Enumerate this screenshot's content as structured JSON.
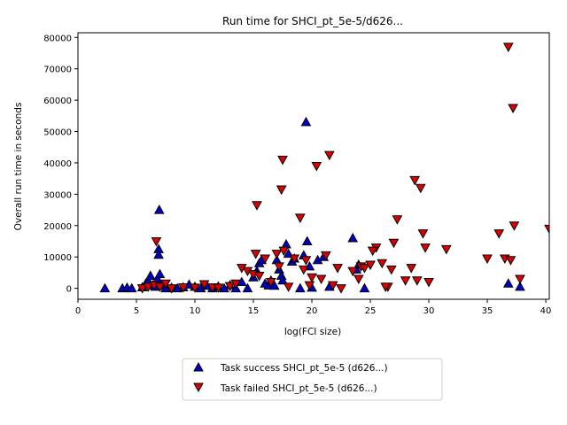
{
  "chart_data": {
    "type": "scatter",
    "title": "Run time for SHCI_pt_5e-5/d626...",
    "xlabel": "log(FCI size)",
    "ylabel": "Overall run time in seconds",
    "xlim": [
      0,
      40.3
    ],
    "ylim": [
      -3500,
      81500
    ],
    "xticks": [
      0,
      5,
      10,
      15,
      20,
      25,
      30,
      35,
      40
    ],
    "yticks": [
      0,
      10000,
      20000,
      30000,
      40000,
      50000,
      60000,
      70000,
      80000
    ],
    "grid": false,
    "legend_position": "below-plot",
    "series": [
      {
        "name": "Task success SHCI_pt_5e-5 (d626...)",
        "marker": "triangle-up",
        "color": "#0000cc",
        "points": [
          [
            2.3,
            0
          ],
          [
            3.8,
            0
          ],
          [
            4.2,
            200
          ],
          [
            4.6,
            0
          ],
          [
            5.5,
            300
          ],
          [
            5.8,
            1500
          ],
          [
            6.0,
            2500
          ],
          [
            6.2,
            4000
          ],
          [
            6.4,
            1000
          ],
          [
            6.6,
            500
          ],
          [
            6.8,
            3000
          ],
          [
            6.9,
            12500
          ],
          [
            6.9,
            10700
          ],
          [
            6.95,
            25000
          ],
          [
            7.0,
            4500
          ],
          [
            7.2,
            800
          ],
          [
            7.5,
            0
          ],
          [
            8.0,
            200
          ],
          [
            8.5,
            0
          ],
          [
            9.0,
            300
          ],
          [
            9.5,
            1200
          ],
          [
            10.0,
            500
          ],
          [
            10.5,
            0
          ],
          [
            11.0,
            800
          ],
          [
            11.5,
            0
          ],
          [
            12.0,
            600
          ],
          [
            12.5,
            0
          ],
          [
            13.0,
            1000
          ],
          [
            13.5,
            0
          ],
          [
            14.0,
            2000
          ],
          [
            14.5,
            0
          ],
          [
            15.0,
            3500
          ],
          [
            15.3,
            5500
          ],
          [
            15.5,
            8000
          ],
          [
            15.7,
            9000
          ],
          [
            16.0,
            1500
          ],
          [
            16.3,
            900
          ],
          [
            16.5,
            2500
          ],
          [
            16.8,
            800
          ],
          [
            17.0,
            9000
          ],
          [
            17.2,
            6000
          ],
          [
            17.4,
            4000
          ],
          [
            17.5,
            2500
          ],
          [
            17.8,
            14000
          ],
          [
            18.0,
            11000
          ],
          [
            18.3,
            8500
          ],
          [
            18.5,
            9500
          ],
          [
            19.0,
            0
          ],
          [
            19.3,
            10500
          ],
          [
            19.5,
            53000
          ],
          [
            19.6,
            15000
          ],
          [
            19.8,
            7000
          ],
          [
            20.0,
            200
          ],
          [
            20.5,
            9000
          ],
          [
            21.0,
            10000
          ],
          [
            21.5,
            500
          ],
          [
            23.5,
            16000
          ],
          [
            23.8,
            6000
          ],
          [
            24.0,
            7500
          ],
          [
            24.5,
            0
          ],
          [
            36.8,
            1500
          ],
          [
            37.8,
            500
          ]
        ]
      },
      {
        "name": "Task failed SHCI_pt_5e-5 (d626...)",
        "marker": "triangle-down",
        "color": "#dd0000",
        "points": [
          [
            5.5,
            0
          ],
          [
            6.0,
            500
          ],
          [
            6.5,
            1000
          ],
          [
            6.7,
            15000
          ],
          [
            7.0,
            500
          ],
          [
            7.5,
            1500
          ],
          [
            8.0,
            0
          ],
          [
            9.0,
            300
          ],
          [
            10.0,
            200
          ],
          [
            10.8,
            1300
          ],
          [
            11.5,
            300
          ],
          [
            12.0,
            200
          ],
          [
            13.0,
            700
          ],
          [
            13.5,
            1500
          ],
          [
            14.0,
            6500
          ],
          [
            14.5,
            5500
          ],
          [
            15.0,
            4500
          ],
          [
            15.2,
            11000
          ],
          [
            15.3,
            26500
          ],
          [
            15.5,
            4000
          ],
          [
            16.0,
            9500
          ],
          [
            16.5,
            2000
          ],
          [
            17.0,
            11000
          ],
          [
            17.2,
            7000
          ],
          [
            17.4,
            31500
          ],
          [
            17.5,
            41000
          ],
          [
            17.6,
            12000
          ],
          [
            18.0,
            500
          ],
          [
            18.5,
            9500
          ],
          [
            19.0,
            22500
          ],
          [
            19.3,
            6000
          ],
          [
            19.5,
            9000
          ],
          [
            19.8,
            1000
          ],
          [
            20.0,
            3500
          ],
          [
            20.4,
            39000
          ],
          [
            20.8,
            3000
          ],
          [
            21.2,
            10500
          ],
          [
            21.5,
            42500
          ],
          [
            21.8,
            1000
          ],
          [
            22.2,
            6500
          ],
          [
            22.5,
            0
          ],
          [
            23.5,
            5500
          ],
          [
            24.0,
            3000
          ],
          [
            24.2,
            7000
          ],
          [
            24.5,
            6500
          ],
          [
            25.0,
            7500
          ],
          [
            25.5,
            13000
          ],
          [
            26.0,
            8000
          ],
          [
            26.5,
            500
          ],
          [
            26.8,
            6000
          ],
          [
            27.0,
            14500
          ],
          [
            27.3,
            22000
          ],
          [
            28.0,
            2500
          ],
          [
            28.5,
            6500
          ],
          [
            28.8,
            34500
          ],
          [
            29.0,
            2500
          ],
          [
            29.3,
            32000
          ],
          [
            29.5,
            17500
          ],
          [
            29.7,
            13000
          ],
          [
            30.0,
            2000
          ],
          [
            31.5,
            12500
          ],
          [
            35.0,
            9500
          ],
          [
            36.0,
            17500
          ],
          [
            36.5,
            9500
          ],
          [
            36.8,
            77000
          ],
          [
            37.0,
            9000
          ],
          [
            37.2,
            57500
          ],
          [
            37.3,
            20000
          ],
          [
            37.8,
            3000
          ],
          [
            40.3,
            19000
          ],
          [
            26.3,
            500
          ],
          [
            25.2,
            12000
          ]
        ]
      }
    ]
  }
}
